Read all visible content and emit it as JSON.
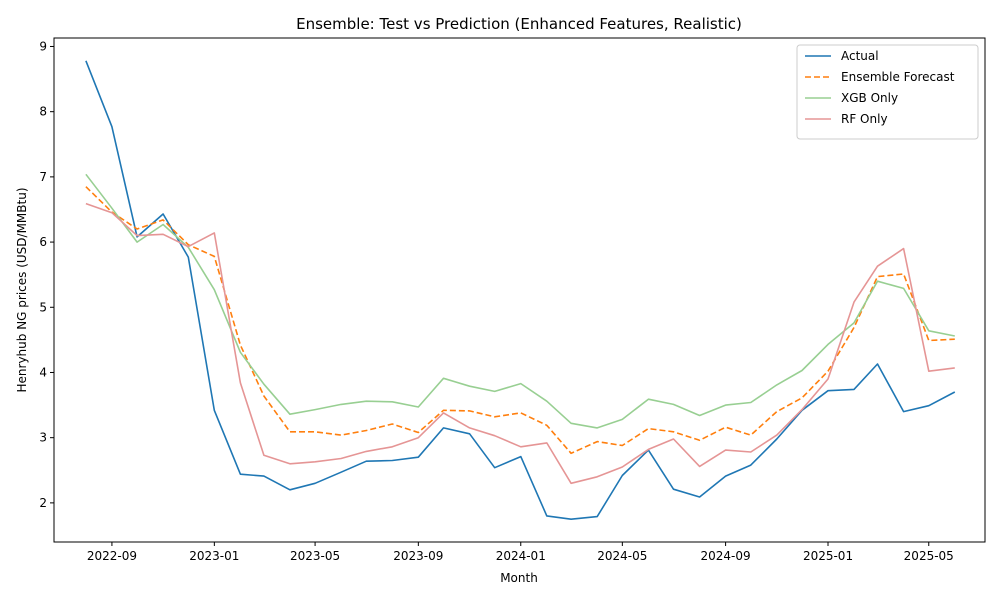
{
  "chart_data": {
    "type": "line",
    "title": "Ensemble: Test vs Prediction (Enhanced Features, Realistic)",
    "xlabel": "Month",
    "ylabel": "Henryhub NG prices (USD/MMBtu)",
    "ylim": [
      1.4,
      9.13
    ],
    "xlim": [
      "2022-06-24",
      "2025-07-07"
    ],
    "grid": false,
    "legend_position": "top-right",
    "x": [
      "2022-08-01",
      "2022-09-01",
      "2022-10-01",
      "2022-11-01",
      "2022-12-01",
      "2023-01-01",
      "2023-02-01",
      "2023-03-01",
      "2023-04-01",
      "2023-05-01",
      "2023-06-01",
      "2023-07-01",
      "2023-08-01",
      "2023-09-01",
      "2023-10-01",
      "2023-11-01",
      "2023-12-01",
      "2024-01-01",
      "2024-02-01",
      "2024-03-01",
      "2024-04-01",
      "2024-05-01",
      "2024-06-01",
      "2024-07-01",
      "2024-08-01",
      "2024-09-01",
      "2024-10-01",
      "2024-11-01",
      "2024-12-01",
      "2025-01-01",
      "2025-02-01",
      "2025-03-01",
      "2025-04-01",
      "2025-05-01",
      "2025-06-01"
    ],
    "x_ticks": [
      {
        "date": "2022-09-01",
        "label": "2022-09"
      },
      {
        "date": "2023-01-01",
        "label": "2023-01"
      },
      {
        "date": "2023-05-01",
        "label": "2023-05"
      },
      {
        "date": "2023-09-01",
        "label": "2023-09"
      },
      {
        "date": "2024-01-01",
        "label": "2024-01"
      },
      {
        "date": "2024-05-01",
        "label": "2024-05"
      },
      {
        "date": "2024-09-01",
        "label": "2024-09"
      },
      {
        "date": "2025-01-01",
        "label": "2025-01"
      },
      {
        "date": "2025-05-01",
        "label": "2025-05"
      }
    ],
    "y_ticks": [
      2,
      3,
      4,
      5,
      6,
      7,
      8,
      9
    ],
    "series": [
      {
        "name": "Actual",
        "color": "#1f77b4",
        "dash": "solid",
        "values": [
          8.78,
          7.77,
          6.08,
          6.43,
          5.77,
          3.42,
          2.44,
          2.41,
          2.2,
          2.3,
          2.47,
          2.64,
          2.65,
          2.7,
          3.15,
          3.06,
          2.54,
          2.71,
          1.8,
          1.75,
          1.79,
          2.42,
          2.81,
          2.21,
          2.09,
          2.41,
          2.58,
          2.98,
          3.42,
          3.72,
          3.74,
          4.13,
          3.4,
          3.49,
          3.7
        ]
      },
      {
        "name": "Ensemble Forecast",
        "color": "#ff7f0e",
        "dash": "dashed",
        "values": [
          6.85,
          6.46,
          6.2,
          6.34,
          5.96,
          5.78,
          4.42,
          3.64,
          3.09,
          3.09,
          3.04,
          3.11,
          3.21,
          3.08,
          3.42,
          3.41,
          3.32,
          3.38,
          3.19,
          2.76,
          2.94,
          2.88,
          3.14,
          3.09,
          2.96,
          3.16,
          3.04,
          3.4,
          3.61,
          4.02,
          4.69,
          5.47,
          5.51,
          4.49,
          4.51
        ]
      },
      {
        "name": "XGB Only",
        "color": "#98cf92",
        "dash": "solid",
        "values": [
          7.04,
          6.52,
          6.0,
          6.27,
          5.92,
          5.27,
          4.31,
          3.82,
          3.36,
          3.43,
          3.51,
          3.56,
          3.55,
          3.47,
          3.91,
          3.79,
          3.71,
          3.83,
          3.56,
          3.22,
          3.15,
          3.28,
          3.59,
          3.51,
          3.34,
          3.5,
          3.54,
          3.81,
          4.03,
          4.43,
          4.76,
          5.4,
          5.29,
          4.64,
          4.56
        ]
      },
      {
        "name": "RF Only",
        "color": "#e59595",
        "dash": "solid",
        "values": [
          6.59,
          6.45,
          6.1,
          6.12,
          5.93,
          6.14,
          3.84,
          2.73,
          2.6,
          2.63,
          2.68,
          2.79,
          2.86,
          3.0,
          3.38,
          3.15,
          3.03,
          2.86,
          2.92,
          2.3,
          2.4,
          2.55,
          2.82,
          2.98,
          2.56,
          2.81,
          2.78,
          3.04,
          3.43,
          3.9,
          5.08,
          5.63,
          5.9,
          4.02,
          4.07
        ]
      }
    ]
  }
}
